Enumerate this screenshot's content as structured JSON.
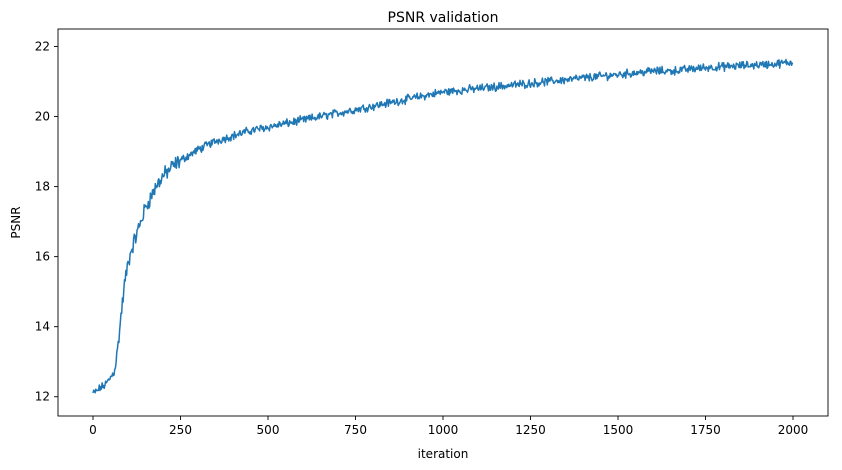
{
  "chart_data": {
    "type": "line",
    "title": "PSNR validation",
    "xlabel": "iteration",
    "ylabel": "PSNR",
    "xlim": [
      -100,
      2100
    ],
    "ylim": [
      11.45,
      22.5
    ],
    "xticks": [
      0,
      250,
      500,
      750,
      1000,
      1250,
      1500,
      1750,
      2000
    ],
    "yticks": [
      12,
      14,
      16,
      18,
      20,
      22
    ],
    "grid": false,
    "legend": "none",
    "color": "#1f77b4",
    "series": [
      {
        "x": [
          0,
          10,
          20,
          30,
          40,
          50,
          60,
          70,
          80,
          90,
          100,
          110,
          120,
          130,
          140,
          150,
          160,
          170,
          180,
          190,
          200,
          225,
          250,
          275,
          300,
          350,
          400,
          450,
          500,
          550,
          600,
          650,
          700,
          750,
          800,
          850,
          900,
          950,
          1000,
          1050,
          1100,
          1150,
          1200,
          1250,
          1300,
          1350,
          1400,
          1450,
          1500,
          1550,
          1600,
          1650,
          1700,
          1750,
          1800,
          1850,
          1900,
          1950,
          2000
        ],
        "values": [
          12.1,
          12.15,
          12.25,
          12.3,
          12.4,
          12.55,
          12.7,
          13.3,
          14.3,
          15.2,
          15.8,
          16.2,
          16.5,
          16.8,
          17.1,
          17.4,
          17.6,
          17.8,
          18.0,
          18.15,
          18.3,
          18.55,
          18.75,
          18.9,
          19.05,
          19.3,
          19.45,
          19.6,
          19.7,
          19.8,
          19.9,
          20.0,
          20.1,
          20.2,
          20.3,
          20.4,
          20.5,
          20.6,
          20.7,
          20.75,
          20.8,
          20.85,
          20.9,
          20.95,
          21.0,
          21.05,
          21.1,
          21.15,
          21.2,
          21.25,
          21.3,
          21.3,
          21.35,
          21.4,
          21.42,
          21.45,
          21.48,
          21.5,
          21.55
        ]
      }
    ]
  }
}
